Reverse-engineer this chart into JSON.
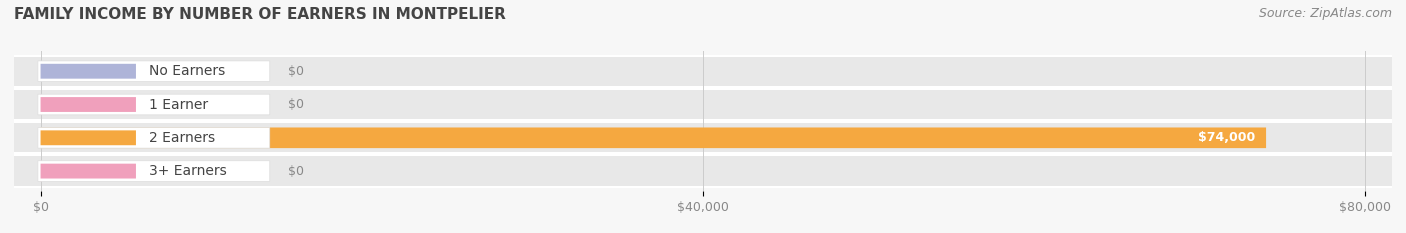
{
  "title": "FAMILY INCOME BY NUMBER OF EARNERS IN MONTPELIER",
  "source": "Source: ZipAtlas.com",
  "categories": [
    "No Earners",
    "1 Earner",
    "2 Earners",
    "3+ Earners"
  ],
  "values": [
    0,
    0,
    74000,
    0
  ],
  "bar_colors": [
    "#aeb4d8",
    "#f0a0bc",
    "#f5a840",
    "#f0a0bc"
  ],
  "pill_inner_colors": [
    "#aeb4d8",
    "#f0a0bc",
    "#f5a840",
    "#f0a0bc"
  ],
  "background_color": "#f7f7f7",
  "row_bg_color": "#e8e8e8",
  "row_sep_color": "#ffffff",
  "xlim_max": 80000,
  "xticks": [
    0,
    40000,
    80000
  ],
  "xtick_labels": [
    "$0",
    "$40,000",
    "$80,000"
  ],
  "title_fontsize": 11,
  "source_fontsize": 9,
  "value_label_fontsize": 9,
  "tick_fontsize": 9,
  "category_fontsize": 10
}
